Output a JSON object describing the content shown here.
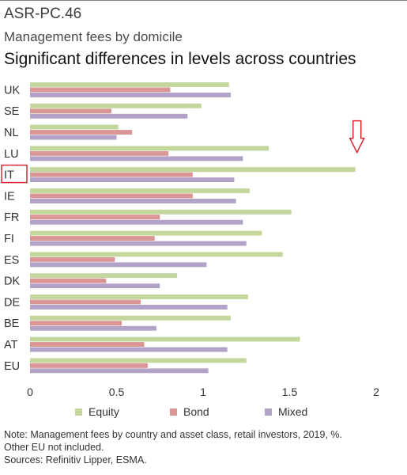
{
  "header": {
    "code": "ASR-PC.46",
    "subtitle": "Management fees by domicile",
    "title": "Significant differences in levels across countries"
  },
  "notes": {
    "line1": "Note: Management fees by country and asset class, retail investors, 2019, %.",
    "line2": "Other EU not included.",
    "line3": "Sources: Refinitiv Lipper, ESMA."
  },
  "chart_data": {
    "type": "bar",
    "orientation": "horizontal",
    "categories": [
      "UK",
      "SE",
      "NL",
      "LU",
      "IT",
      "IE",
      "FR",
      "FI",
      "ES",
      "DK",
      "DE",
      "BE",
      "AT",
      "EU"
    ],
    "series": [
      {
        "name": "Equity",
        "color": "#c3d69b",
        "values": [
          1.15,
          0.99,
          0.51,
          1.38,
          1.88,
          1.27,
          1.51,
          1.34,
          1.46,
          0.85,
          1.26,
          1.16,
          1.56,
          1.25
        ]
      },
      {
        "name": "Bond",
        "color": "#d99694",
        "values": [
          0.81,
          0.47,
          0.59,
          0.8,
          0.94,
          0.94,
          0.75,
          0.72,
          0.49,
          0.44,
          0.64,
          0.53,
          0.66,
          0.68
        ]
      },
      {
        "name": "Mixed",
        "color": "#b3a2c7",
        "values": [
          1.16,
          0.91,
          0.5,
          1.23,
          1.18,
          1.19,
          1.23,
          1.25,
          1.02,
          0.75,
          1.14,
          0.73,
          1.14,
          1.03
        ]
      }
    ],
    "xlim": [
      0,
      2
    ],
    "xticks": [
      0,
      0.5,
      1,
      1.5,
      2
    ],
    "xtick_labels": [
      "0",
      "0.5",
      "1",
      "1.5",
      "2"
    ],
    "highlighted_category": "IT",
    "highlight_color": "#d9272e",
    "grid": false,
    "legend_position": "bottom"
  }
}
